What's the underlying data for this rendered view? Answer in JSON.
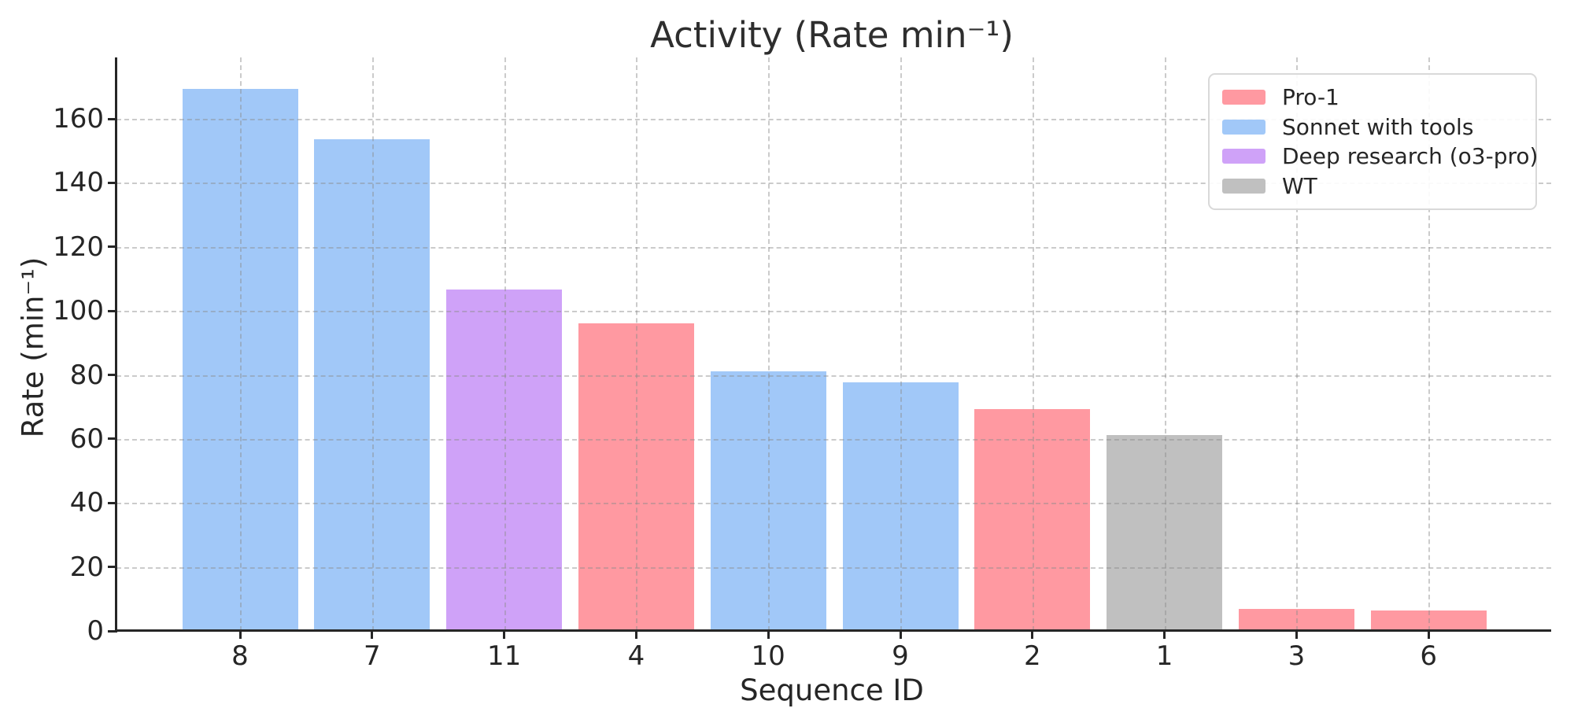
{
  "chart_data": {
    "type": "bar",
    "title": "Activity (Rate min⁻¹)",
    "xlabel": "Sequence ID",
    "ylabel": "Rate (min⁻¹)",
    "categories": [
      "8",
      "7",
      "11",
      "4",
      "10",
      "9",
      "2",
      "1",
      "3",
      "6"
    ],
    "values": [
      169.3,
      153.7,
      106.8,
      96.0,
      81.1,
      77.6,
      69.4,
      61.1,
      7.0,
      6.3
    ],
    "bar_series": [
      "Sonnet with tools",
      "Sonnet with tools",
      "Deep research (o3-pro)",
      "Pro-1",
      "Sonnet with tools",
      "Sonnet with tools",
      "Pro-1",
      "WT",
      "Pro-1",
      "Pro-1"
    ],
    "legend": [
      {
        "label": "Pro-1",
        "color": "#ff99a1"
      },
      {
        "label": "Sonnet with tools",
        "color": "#a1c8f8"
      },
      {
        "label": "Deep research (o3-pro)",
        "color": "#cfa2f8"
      },
      {
        "label": "WT",
        "color": "#c0c0c0"
      }
    ],
    "legend_position": "upper right",
    "grid": true,
    "grid_style": "dashed",
    "ylim": [
      0,
      179.2
    ],
    "yticks": [
      0,
      20,
      40,
      60,
      80,
      100,
      120,
      140,
      160
    ]
  }
}
